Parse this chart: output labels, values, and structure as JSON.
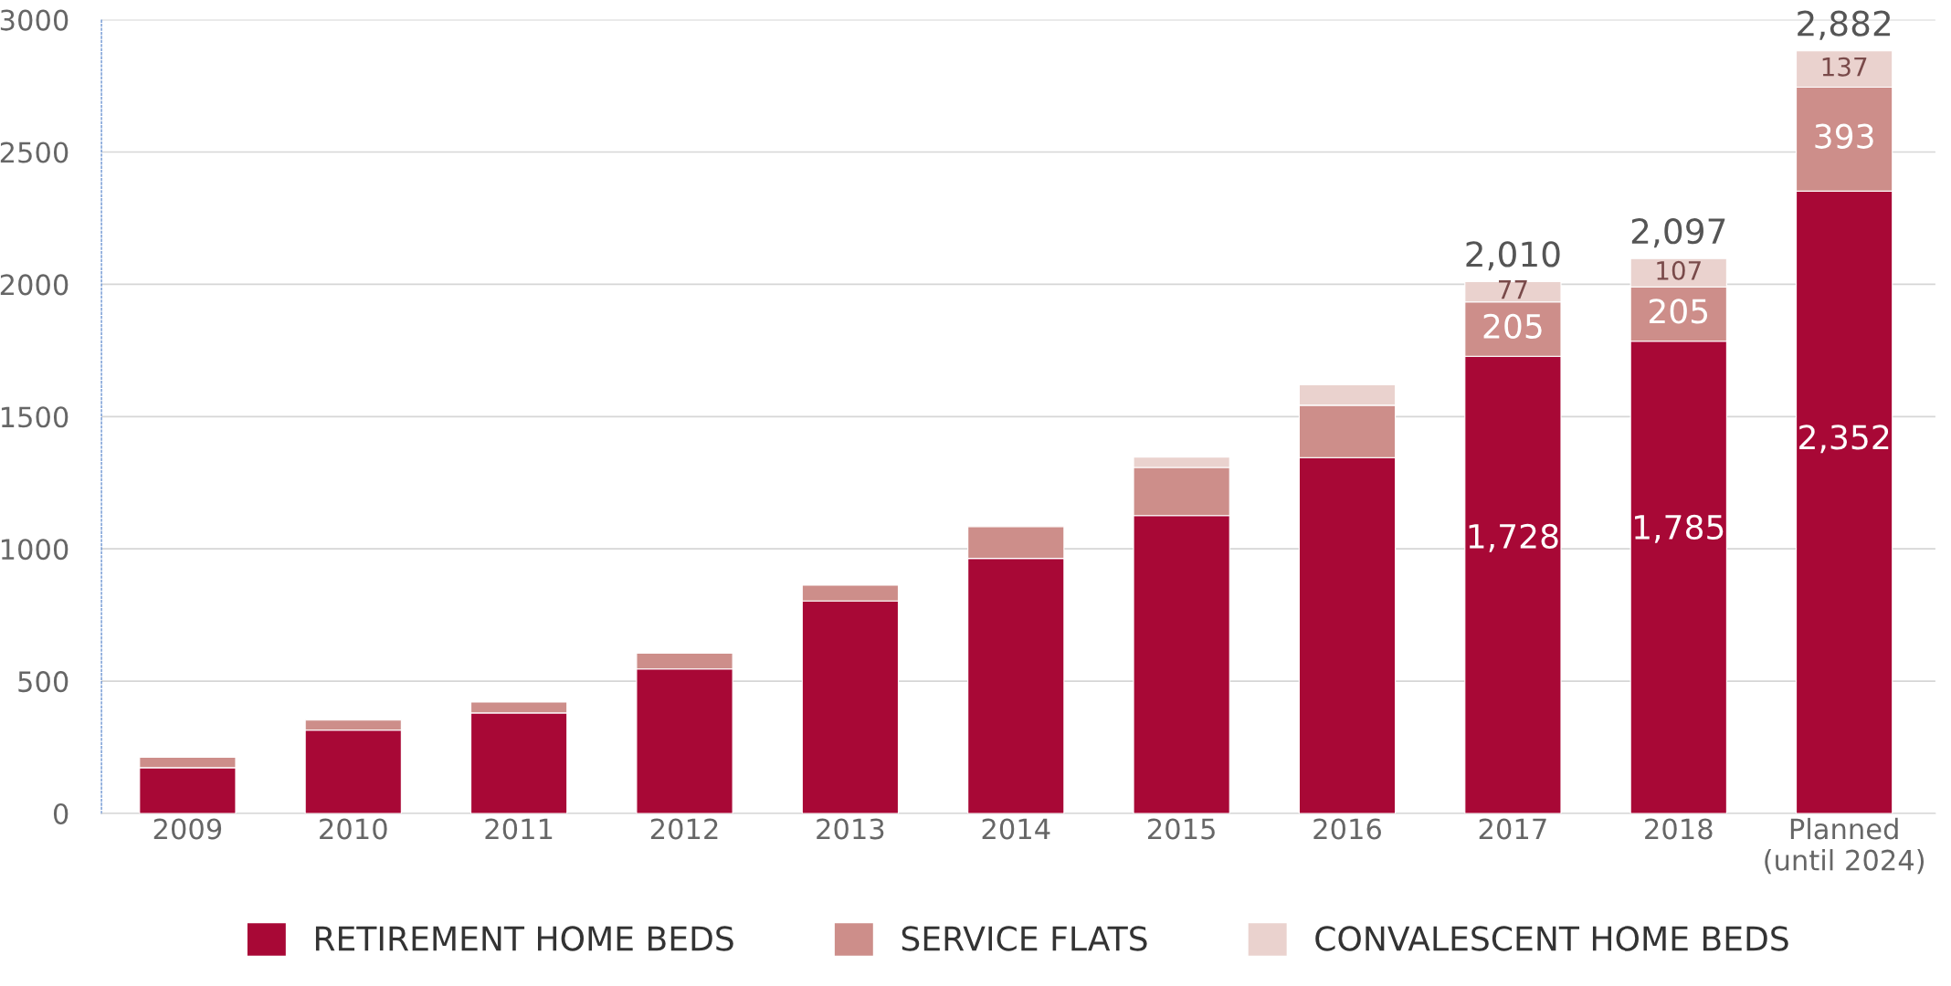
{
  "chart_data": {
    "type": "bar",
    "stacked": true,
    "categories": [
      "2009",
      "2010",
      "2011",
      "2012",
      "2013",
      "2014",
      "2015",
      "2016",
      "2017",
      "2018",
      "Planned\n(until 2024)"
    ],
    "series": [
      {
        "name": "RETIREMENT HOME BEDS",
        "color": "#a80836",
        "values": [
          173,
          315,
          380,
          546,
          803,
          964,
          1126,
          1345,
          1728,
          1785,
          2352
        ],
        "value_labels": [
          null,
          null,
          null,
          null,
          null,
          null,
          null,
          null,
          "1,728",
          "1,785",
          "2,352"
        ]
      },
      {
        "name": "SERVICE FLATS",
        "color": "#cd8e8a",
        "values": [
          39,
          38,
          41,
          60,
          60,
          120,
          182,
          198,
          205,
          205,
          393
        ],
        "value_labels": [
          null,
          null,
          null,
          null,
          null,
          null,
          null,
          null,
          "205",
          "205",
          "393"
        ]
      },
      {
        "name": "CONVALESCENT HOME BEDS",
        "color": "#ead2ce",
        "values": [
          null,
          null,
          null,
          null,
          null,
          null,
          39,
          77,
          77,
          107,
          137
        ],
        "value_labels": [
          null,
          null,
          null,
          null,
          null,
          null,
          null,
          null,
          "77",
          "107",
          "137"
        ]
      }
    ],
    "totals": [
      null,
      null,
      null,
      null,
      null,
      null,
      null,
      null,
      "2,010",
      "2,097",
      "2,882"
    ],
    "ylim": [
      0,
      3000
    ],
    "yticks": [
      0,
      500,
      1000,
      1500,
      2000,
      2500,
      3000
    ],
    "grid": "y",
    "legend": "bottom"
  }
}
